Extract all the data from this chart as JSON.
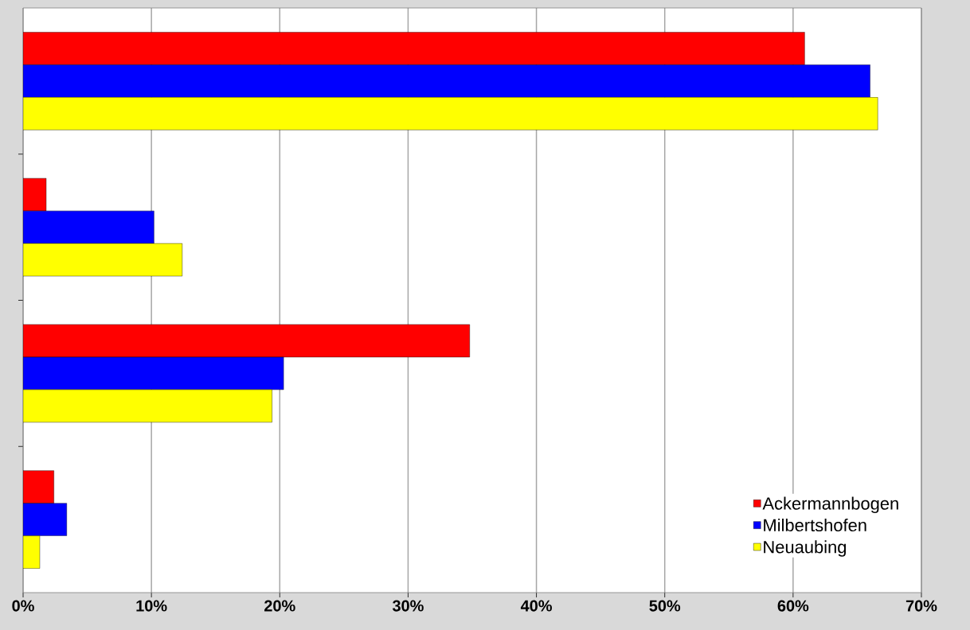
{
  "chart_data": {
    "type": "bar",
    "orientation": "horizontal",
    "categories": [
      null,
      null,
      null,
      null
    ],
    "series": [
      {
        "name": "Ackermannbogen",
        "color": "#ff0000",
        "values": [
          60.9,
          1.8,
          34.8,
          2.4
        ]
      },
      {
        "name": "Milbertshofen",
        "color": "#0000ff",
        "values": [
          66.0,
          10.2,
          20.3,
          3.4
        ]
      },
      {
        "name": "Neuaubing",
        "color": "#ffff00",
        "values": [
          66.6,
          12.4,
          19.4,
          1.3
        ]
      }
    ],
    "xlim": [
      0,
      70
    ],
    "xticks": [
      {
        "value": 0,
        "label": "0%"
      },
      {
        "value": 10,
        "label": "10%"
      },
      {
        "value": 20,
        "label": "20%"
      },
      {
        "value": 30,
        "label": "30%"
      },
      {
        "value": 40,
        "label": "40%"
      },
      {
        "value": 50,
        "label": "50%"
      },
      {
        "value": 60,
        "label": "60%"
      },
      {
        "value": 70,
        "label": "70%"
      }
    ],
    "grid": "x",
    "legend": "bottom right"
  }
}
